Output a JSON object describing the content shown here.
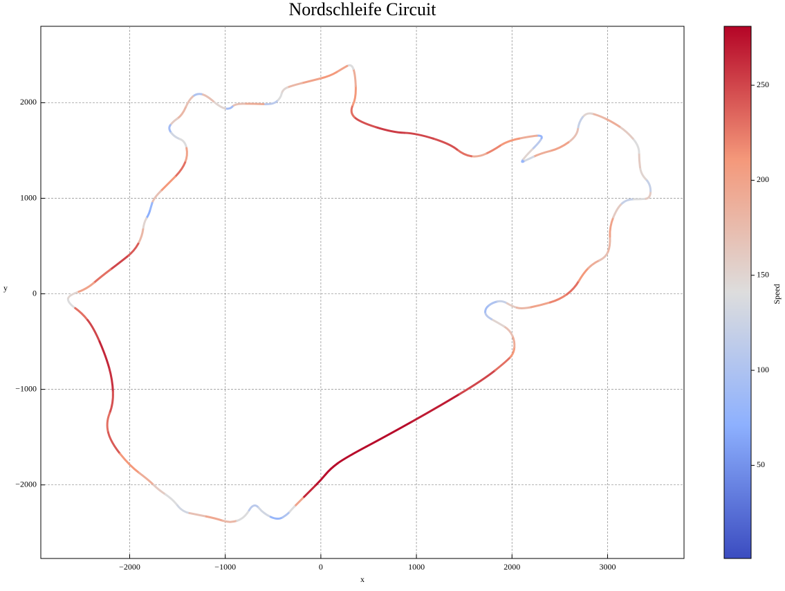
{
  "chart_data": {
    "type": "speed_line",
    "title": "Nordschleife Circuit",
    "xlabel": "x",
    "ylabel": "y",
    "colorbar_label": "Speed",
    "cmap": "coolwarm",
    "xlim": [
      -2930,
      3800
    ],
    "ylim": [
      -2770,
      2800
    ],
    "xticks": [
      {
        "value": -2000,
        "label": "−2000"
      },
      {
        "value": -1000,
        "label": "−1000"
      },
      0,
      1000,
      2000,
      3000
    ],
    "yticks": [
      {
        "value": -2000,
        "label": "−2000"
      },
      {
        "value": -1000,
        "label": "−1000"
      },
      0,
      1000,
      2000
    ],
    "clim": [
      1,
      281
    ],
    "colorbar_ticks": [
      50,
      100,
      150,
      200,
      250
    ],
    "grid": true,
    "x": [
      -250,
      -100,
      0,
      100,
      250,
      700,
      1200,
      1700,
      1950,
      2020,
      2030,
      1980,
      1850,
      1720,
      1720,
      1800,
      1900,
      2000,
      2100,
      2300,
      2500,
      2650,
      2750,
      2850,
      2980,
      3030,
      3020,
      3100,
      3200,
      3350,
      3450,
      3450,
      3350,
      3330,
      3330,
      3200,
      3050,
      2900,
      2780,
      2700,
      2680,
      2500,
      2300,
      2150,
      2090,
      2150,
      2300,
      2320,
      2200,
      1950,
      1800,
      1650,
      1500,
      1350,
      1000,
      750,
      400,
      300,
      370,
      360,
      320,
      230,
      100,
      -100,
      -300,
      -400,
      -420,
      -500,
      -700,
      -900,
      -950,
      -1050,
      -1200,
      -1300,
      -1380,
      -1450,
      -1550,
      -1600,
      -1530,
      -1420,
      -1390,
      -1450,
      -1600,
      -1750,
      -1780,
      -1800,
      -1850,
      -1870,
      -1950,
      -2100,
      -2300,
      -2450,
      -2650,
      -2640,
      -2500,
      -2380,
      -2250,
      -2180,
      -2170,
      -2250,
      -2200,
      -2000,
      -1800,
      -1700,
      -1550,
      -1450,
      -1300,
      -1100,
      -950,
      -800,
      -700,
      -600,
      -450,
      -350,
      -300
    ],
    "y": [
      -2200,
      -2050,
      -1950,
      -1830,
      -1720,
      -1480,
      -1200,
      -900,
      -700,
      -620,
      -500,
      -380,
      -300,
      -230,
      -150,
      -90,
      -70,
      -130,
      -160,
      -120,
      -60,
      50,
      220,
      320,
      380,
      500,
      700,
      900,
      990,
      990,
      1000,
      1150,
      1250,
      1400,
      1550,
      1700,
      1800,
      1870,
      1900,
      1800,
      1650,
      1520,
      1470,
      1400,
      1370,
      1450,
      1600,
      1660,
      1650,
      1600,
      1500,
      1430,
      1450,
      1570,
      1680,
      1690,
      1800,
      1900,
      2050,
      2300,
      2410,
      2360,
      2280,
      2230,
      2180,
      2140,
      2050,
      1980,
      1990,
      1990,
      1930,
      1950,
      2080,
      2100,
      2030,
      1870,
      1800,
      1730,
      1640,
      1600,
      1450,
      1300,
      1150,
      1000,
      900,
      830,
      750,
      600,
      450,
      330,
      180,
      50,
      -20,
      -100,
      -200,
      -350,
      -650,
      -900,
      -1150,
      -1350,
      -1550,
      -1800,
      -1950,
      -2050,
      -2150,
      -2280,
      -2310,
      -2350,
      -2400,
      -2350,
      -2180,
      -2300,
      -2370,
      -2310,
      -2250
    ],
    "speed": [
      200,
      265,
      275,
      278,
      278,
      278,
      270,
      250,
      230,
      210,
      190,
      170,
      150,
      110,
      90,
      100,
      120,
      160,
      180,
      200,
      220,
      230,
      210,
      190,
      170,
      180,
      200,
      160,
      120,
      140,
      160,
      120,
      150,
      160,
      140,
      160,
      190,
      180,
      150,
      120,
      170,
      200,
      190,
      130,
      80,
      150,
      110,
      80,
      190,
      210,
      220,
      190,
      230,
      245,
      250,
      255,
      245,
      230,
      210,
      190,
      140,
      200,
      210,
      200,
      180,
      150,
      140,
      110,
      190,
      170,
      90,
      150,
      170,
      100,
      170,
      180,
      160,
      90,
      130,
      140,
      200,
      230,
      210,
      170,
      80,
      70,
      150,
      180,
      240,
      250,
      230,
      200,
      150,
      140,
      230,
      250,
      265,
      260,
      245,
      230,
      240,
      210,
      190,
      160,
      140,
      130,
      170,
      195,
      180,
      140,
      110,
      130,
      80,
      100,
      140
    ]
  }
}
